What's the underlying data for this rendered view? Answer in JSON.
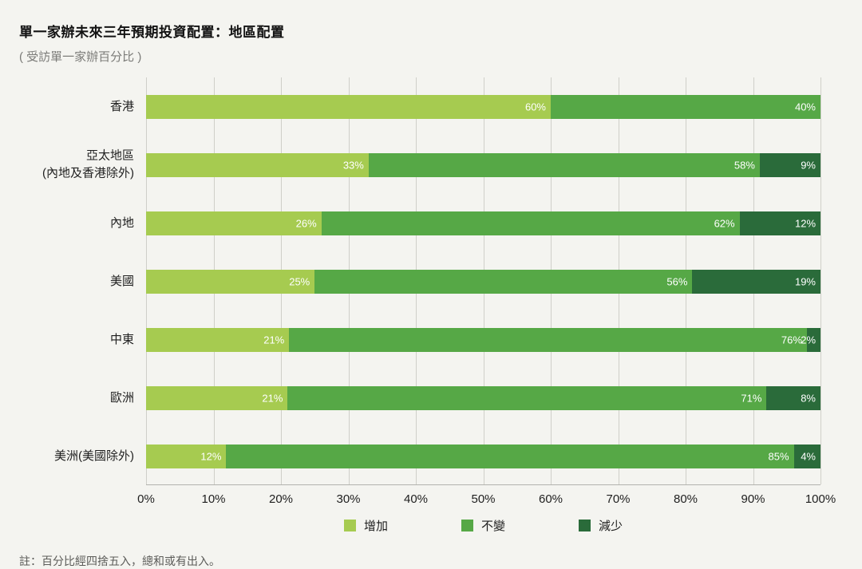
{
  "title": "單一家辦未來三年預期投資配置：地區配置",
  "subtitle": "( 受訪單一家辦百分比 )",
  "note": "註：百分比經四捨五入，總和或有出入。",
  "chart_data": {
    "type": "bar",
    "orientation": "horizontal",
    "stacked": true,
    "title": "單一家辦未來三年預期投資配置：地區配置",
    "subtitle": "( 受訪單一家辦百分比 )",
    "categories": [
      "香港",
      "亞太地區\n(內地及香港除外)",
      "內地",
      "美國",
      "中東",
      "歐洲",
      "美洲(美國除外)"
    ],
    "series": [
      {
        "name": "增加",
        "color": "#a6cb50",
        "values": [
          60,
          33,
          26,
          25,
          21,
          21,
          12
        ]
      },
      {
        "name": "不變",
        "color": "#56a846",
        "values": [
          40,
          58,
          62,
          56,
          76,
          71,
          85
        ]
      },
      {
        "name": "減少",
        "color": "#2a6b3a",
        "values": [
          0,
          9,
          12,
          19,
          2,
          8,
          4
        ]
      }
    ],
    "x_ticks": [
      "0%",
      "10%",
      "20%",
      "30%",
      "40%",
      "50%",
      "60%",
      "70%",
      "80%",
      "90%",
      "100%"
    ],
    "xlim": [
      0,
      100
    ],
    "grid": true,
    "legend_position": "bottom"
  }
}
